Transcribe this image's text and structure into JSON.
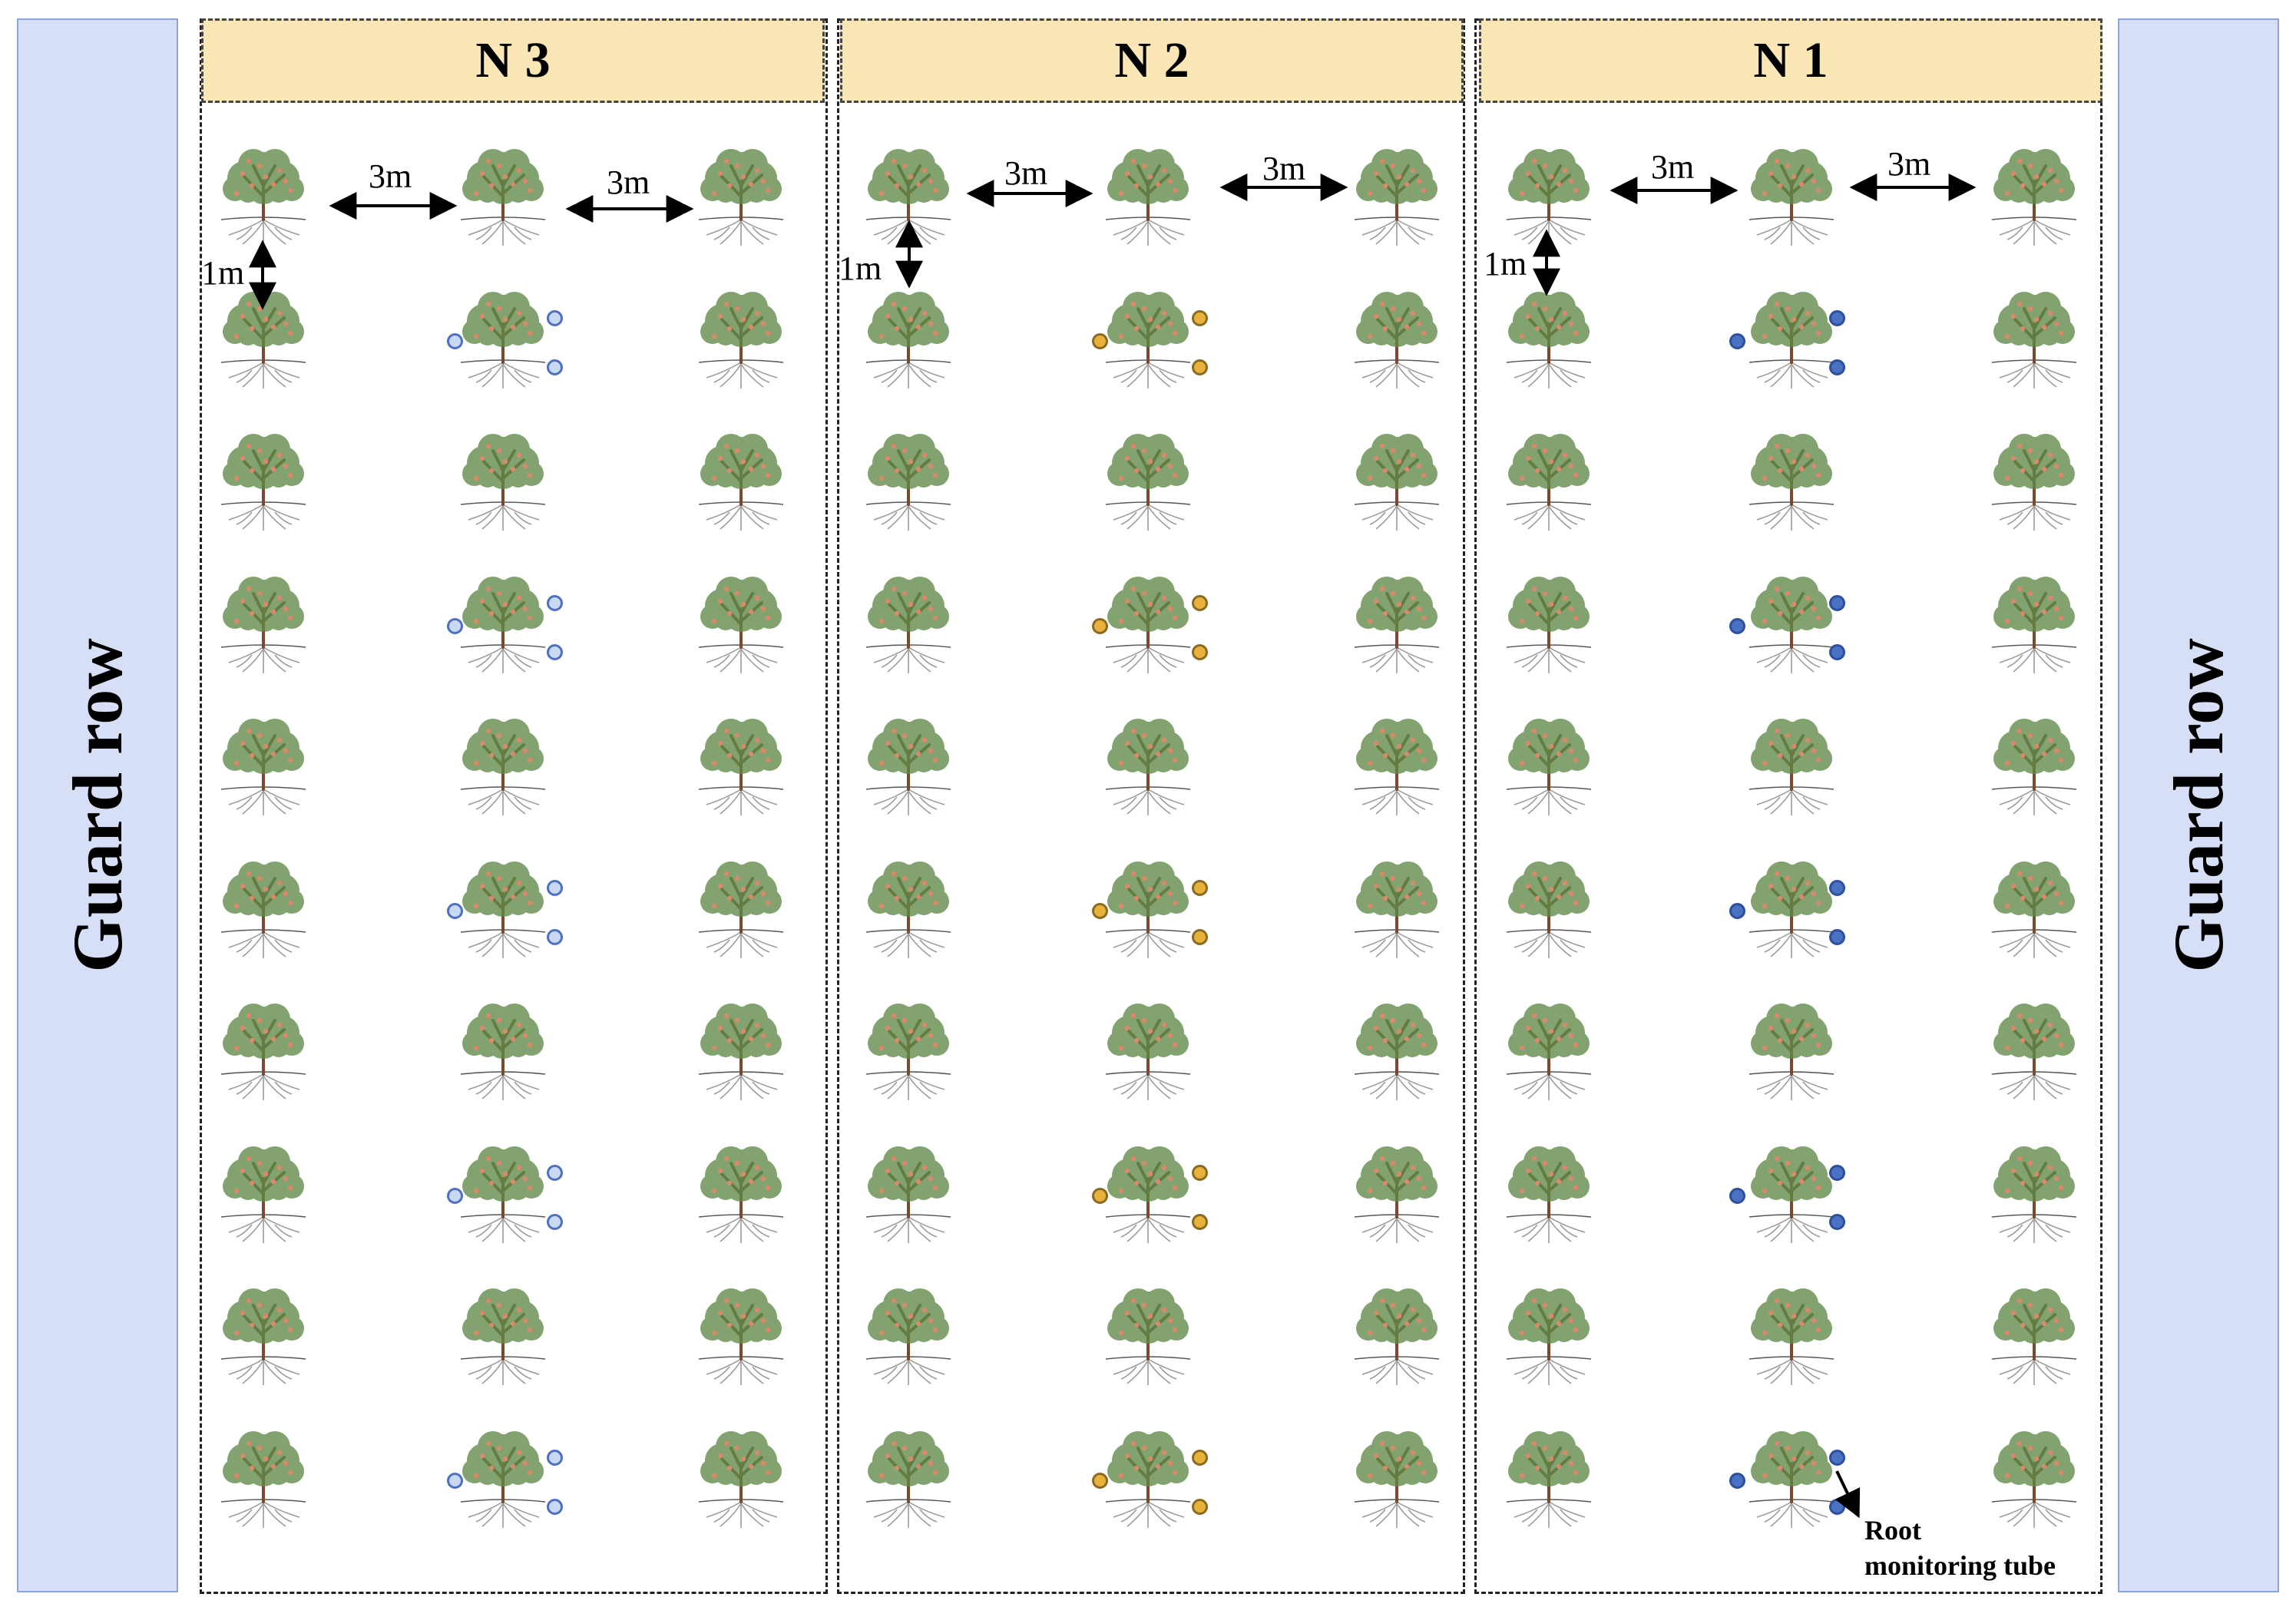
{
  "guard_row": {
    "left_label": "Guard row",
    "right_label": "Guard row"
  },
  "plots": [
    {
      "label": "N 3",
      "tube_fill": "#c9d9f4",
      "tube_stroke": "#4f6fc0"
    },
    {
      "label": "N 2",
      "tube_fill": "#e8b23a",
      "tube_stroke": "#8a6a22"
    },
    {
      "label": "N 1",
      "tube_fill": "#4a72c4",
      "tube_stroke": "#2e4f99"
    }
  ],
  "spacing": {
    "tree_spacing": "3m",
    "row_spacing": "1m"
  },
  "annotation": {
    "tube_label_line1": "Root",
    "tube_label_line2": "monitoring tube"
  },
  "colors": {
    "guard_fill": "#d6dff5",
    "header_fill": "#fbe6b6",
    "trunk": "#7a4a2e",
    "foliage": "#5f8a48",
    "fruit": "#d98a6a",
    "roots": "#9a9a9a"
  }
}
